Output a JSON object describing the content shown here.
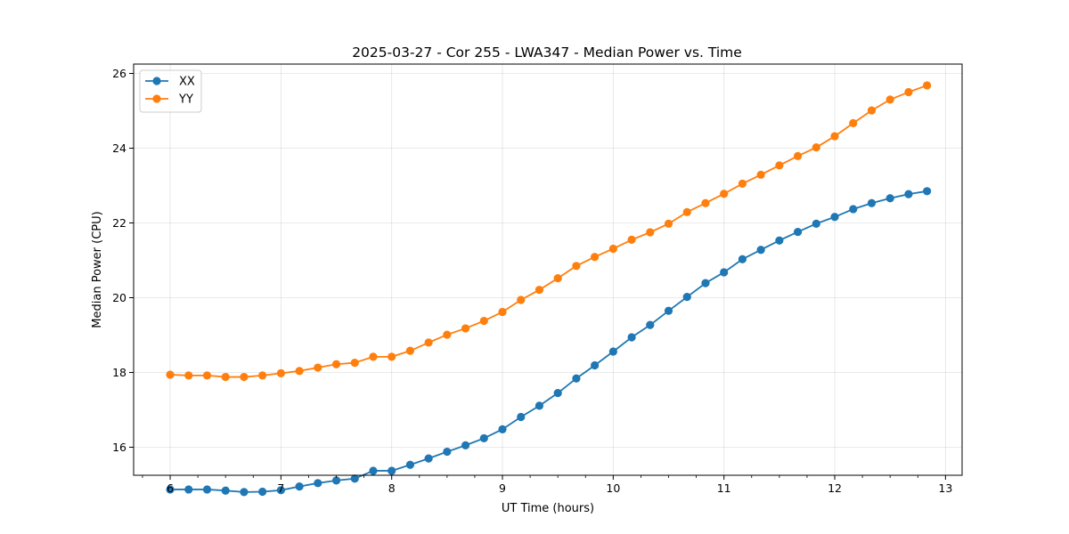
{
  "chart_data": {
    "type": "line",
    "title": "2025-03-27 - Cor 255 - LWA347 - Median Power vs. Time",
    "xlabel": "UT Time (hours)",
    "ylabel": "Median Power (CPU)",
    "xlim": [
      5.67,
      13.15
    ],
    "ylim": [
      15.25,
      26.25
    ],
    "xticks": [
      6,
      7,
      8,
      9,
      10,
      11,
      12,
      13
    ],
    "yticks": [
      16,
      18,
      20,
      22,
      24,
      26
    ],
    "grid": true,
    "legend_position": "upper-left",
    "x": [
      6.0,
      6.1667,
      6.3333,
      6.5,
      6.6667,
      6.8333,
      7.0,
      7.1667,
      7.3333,
      7.5,
      7.6667,
      7.8333,
      8.0,
      8.1667,
      8.3333,
      8.5,
      8.6667,
      8.8333,
      9.0,
      9.1667,
      9.3333,
      9.5,
      9.6667,
      9.8333,
      10.0,
      10.1667,
      10.3333,
      10.5,
      10.6667,
      10.8333,
      11.0,
      11.1667,
      11.3333,
      11.5,
      11.6667,
      11.8333,
      12.0,
      12.1667,
      12.3333,
      12.5,
      12.6667,
      12.8333
    ],
    "series": [
      {
        "name": "XX",
        "color": "#1f77b4",
        "values": [
          14.87,
          14.87,
          14.87,
          14.84,
          14.8,
          14.81,
          14.85,
          14.95,
          15.04,
          15.11,
          15.16,
          15.37,
          15.37,
          15.53,
          15.7,
          15.88,
          16.05,
          16.24,
          16.48,
          16.81,
          17.11,
          17.45,
          17.84,
          18.19,
          18.56,
          18.94,
          19.27,
          19.65,
          20.02,
          20.39,
          20.68,
          21.03,
          21.28,
          21.53,
          21.76,
          21.98,
          22.16,
          22.37,
          22.53,
          22.66,
          22.77,
          22.85
        ]
      },
      {
        "name": "YY",
        "color": "#ff7f0e",
        "values": [
          17.94,
          17.92,
          17.92,
          17.88,
          17.88,
          17.92,
          17.98,
          18.04,
          18.13,
          18.22,
          18.26,
          18.42,
          18.42,
          18.58,
          18.8,
          19.01,
          19.18,
          19.38,
          19.62,
          19.94,
          20.21,
          20.52,
          20.85,
          21.09,
          21.31,
          21.55,
          21.75,
          21.98,
          22.29,
          22.53,
          22.78,
          23.05,
          23.29,
          23.54,
          23.79,
          24.02,
          24.32,
          24.67,
          25.01,
          25.3,
          25.5,
          25.68
        ]
      }
    ]
  }
}
